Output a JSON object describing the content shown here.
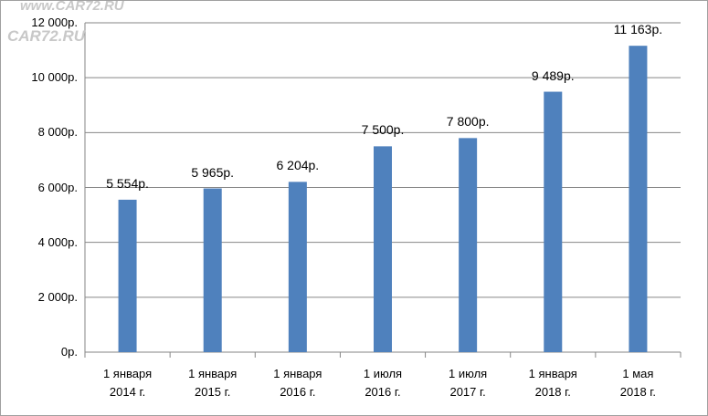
{
  "chart_data": {
    "type": "bar",
    "watermark": [
      "www.CAR72.RU",
      "CAR72.RU"
    ],
    "categories": [
      "1 января\n2014 г.",
      "1 января\n2015 г.",
      "1 января\n2016 г.",
      "1 июля\n2016 г.",
      "1 июля\n2017 г.",
      "1 января\n2018 г.",
      "1 мая\n2018 г."
    ],
    "values": [
      5554,
      5965,
      6204,
      7500,
      7800,
      9489,
      11163
    ],
    "value_labels": [
      "5 554р.",
      "5 965р.",
      "6 204р.",
      "7 500р.",
      "7 800р.",
      "9 489р.",
      "11 163р."
    ],
    "color": "#4f81bd",
    "ylim": [
      0,
      12000
    ],
    "yticks": [
      {
        "value": 0,
        "label": "0р."
      },
      {
        "value": 2000,
        "label": "2 000р."
      },
      {
        "value": 4000,
        "label": "4 000р."
      },
      {
        "value": 6000,
        "label": "6 000р."
      },
      {
        "value": 8000,
        "label": "8 000р."
      },
      {
        "value": 10000,
        "label": "10 000р."
      },
      {
        "value": 12000,
        "label": "12 000р."
      }
    ],
    "grid": true
  }
}
